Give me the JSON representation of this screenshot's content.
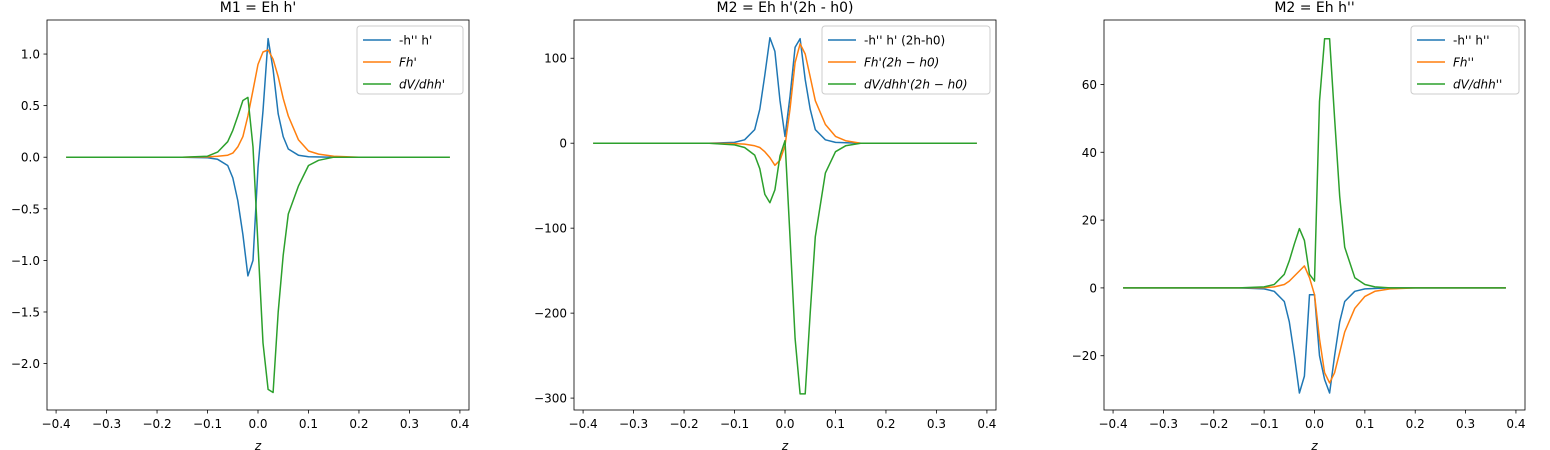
{
  "colors": {
    "blue": "#1f77b4",
    "orange": "#ff7f0e",
    "green": "#2ca02c"
  },
  "chart_data": [
    {
      "type": "line",
      "title": "M1 = Eh h'",
      "xlabel": "z",
      "ylabel": "",
      "xlim": [
        -0.418,
        0.418
      ],
      "ylim": [
        -2.45,
        1.33
      ],
      "xticks": [
        -0.4,
        -0.3,
        -0.2,
        -0.1,
        0.0,
        0.1,
        0.2,
        0.3,
        0.4
      ],
      "xtick_labels": [
        "−0.4",
        "−0.3",
        "−0.2",
        "−0.1",
        "0.0",
        "0.1",
        "0.2",
        "0.3",
        "0.4"
      ],
      "yticks": [
        1.0,
        0.5,
        0.0,
        -0.5,
        -1.0,
        -1.5,
        -2.0
      ],
      "ytick_labels": [
        "1.0",
        "0.5",
        "0.0",
        "−0.5",
        "−1.0",
        "−1.5",
        "−2.0"
      ],
      "grid": false,
      "legend_position": "top-right",
      "series": [
        {
          "name": "-h'' h'",
          "color": "blue",
          "x": [
            -0.38,
            -0.15,
            -0.1,
            -0.08,
            -0.06,
            -0.05,
            -0.04,
            -0.03,
            -0.02,
            -0.01,
            0.0,
            0.01,
            0.02,
            0.03,
            0.04,
            0.05,
            0.06,
            0.08,
            0.1,
            0.15,
            0.38
          ],
          "y": [
            0,
            0,
            -0.005,
            -0.02,
            -0.08,
            -0.2,
            -0.42,
            -0.75,
            -1.15,
            -1.0,
            -0.1,
            0.45,
            1.15,
            0.85,
            0.42,
            0.2,
            0.08,
            0.02,
            0.005,
            0,
            0
          ]
        },
        {
          "name": "Fh'",
          "color": "orange",
          "x": [
            -0.38,
            -0.15,
            -0.1,
            -0.08,
            -0.06,
            -0.05,
            -0.04,
            -0.03,
            -0.02,
            -0.01,
            0.0,
            0.01,
            0.02,
            0.03,
            0.04,
            0.05,
            0.06,
            0.08,
            0.1,
            0.12,
            0.15,
            0.2,
            0.38
          ],
          "y": [
            0,
            0,
            0.003,
            0.01,
            0.02,
            0.04,
            0.1,
            0.2,
            0.4,
            0.65,
            0.9,
            1.02,
            1.04,
            0.95,
            0.78,
            0.57,
            0.4,
            0.17,
            0.06,
            0.03,
            0.01,
            0,
            0
          ]
        },
        {
          "name": "dV/dhh'",
          "color": "green",
          "x": [
            -0.38,
            -0.15,
            -0.1,
            -0.08,
            -0.06,
            -0.05,
            -0.04,
            -0.03,
            -0.02,
            -0.01,
            0.0,
            0.01,
            0.02,
            0.03,
            0.04,
            0.05,
            0.06,
            0.08,
            0.1,
            0.12,
            0.15,
            0.38
          ],
          "y": [
            0,
            0,
            0.01,
            0.05,
            0.15,
            0.26,
            0.4,
            0.55,
            0.58,
            0.1,
            -0.85,
            -1.8,
            -2.25,
            -2.28,
            -1.5,
            -0.95,
            -0.55,
            -0.28,
            -0.08,
            -0.03,
            0,
            0
          ]
        }
      ]
    },
    {
      "type": "line",
      "title": "M2 = Eh h'(2h - h0)",
      "xlabel": "z",
      "ylabel": "",
      "xlim": [
        -0.418,
        0.418
      ],
      "ylim": [
        -314,
        145
      ],
      "xticks": [
        -0.4,
        -0.3,
        -0.2,
        -0.1,
        0.0,
        0.1,
        0.2,
        0.3,
        0.4
      ],
      "xtick_labels": [
        "−0.4",
        "−0.3",
        "−0.2",
        "−0.1",
        "0.0",
        "0.1",
        "0.2",
        "0.3",
        "0.4"
      ],
      "yticks": [
        100,
        0,
        -100,
        -200,
        -300
      ],
      "ytick_labels": [
        "100",
        "0",
        "−100",
        "−200",
        "−300"
      ],
      "grid": false,
      "legend_position": "top-right",
      "series": [
        {
          "name": "-h'' h' (2h-h0)",
          "color": "blue",
          "x": [
            -0.38,
            -0.15,
            -0.1,
            -0.08,
            -0.06,
            -0.05,
            -0.04,
            -0.03,
            -0.02,
            -0.01,
            0.0,
            0.01,
            0.02,
            0.03,
            0.04,
            0.05,
            0.06,
            0.08,
            0.1,
            0.15,
            0.38
          ],
          "y": [
            0,
            0,
            1,
            4,
            16,
            40,
            80,
            124,
            108,
            50,
            8,
            55,
            113,
            123,
            75,
            40,
            16,
            4,
            1,
            0,
            0
          ]
        },
        {
          "name": "Fh'(2h − h0)",
          "color": "orange",
          "x": [
            -0.38,
            -0.15,
            -0.1,
            -0.08,
            -0.06,
            -0.05,
            -0.04,
            -0.03,
            -0.02,
            -0.01,
            0.0,
            0.01,
            0.02,
            0.03,
            0.04,
            0.05,
            0.06,
            0.08,
            0.1,
            0.12,
            0.15,
            0.38
          ],
          "y": [
            0,
            0,
            -0.5,
            -1,
            -3,
            -5,
            -10,
            -17,
            -26,
            -20,
            -3,
            40,
            95,
            117,
            105,
            78,
            50,
            22,
            8,
            3,
            0,
            0
          ]
        },
        {
          "name": "dV/dhh'(2h − h0)",
          "color": "green",
          "x": [
            -0.38,
            -0.15,
            -0.1,
            -0.08,
            -0.06,
            -0.05,
            -0.04,
            -0.03,
            -0.02,
            -0.01,
            0.0,
            0.01,
            0.02,
            0.03,
            0.04,
            0.05,
            0.06,
            0.08,
            0.1,
            0.12,
            0.15,
            0.38
          ],
          "y": [
            0,
            0,
            -2,
            -5,
            -14,
            -30,
            -60,
            -70,
            -55,
            -15,
            3,
            -110,
            -230,
            -295,
            -295,
            -200,
            -110,
            -35,
            -10,
            -3,
            0,
            0
          ]
        }
      ]
    },
    {
      "type": "line",
      "title": "M2 = Eh h''",
      "xlabel": "z",
      "ylabel": "",
      "xlim": [
        -0.418,
        0.418
      ],
      "ylim": [
        -36,
        79
      ],
      "xticks": [
        -0.4,
        -0.3,
        -0.2,
        -0.1,
        0.0,
        0.1,
        0.2,
        0.3,
        0.4
      ],
      "xtick_labels": [
        "−0.4",
        "−0.3",
        "−0.2",
        "−0.1",
        "0.0",
        "0.1",
        "0.2",
        "0.3",
        "0.4"
      ],
      "yticks": [
        60,
        40,
        20,
        0,
        -20
      ],
      "ytick_labels": [
        "60",
        "40",
        "20",
        "0",
        "−20"
      ],
      "grid": false,
      "legend_position": "top-right",
      "series": [
        {
          "name": "-h'' h''",
          "color": "blue",
          "x": [
            -0.38,
            -0.15,
            -0.1,
            -0.08,
            -0.06,
            -0.05,
            -0.04,
            -0.03,
            -0.02,
            -0.01,
            0.0,
            0.01,
            0.02,
            0.03,
            0.04,
            0.05,
            0.06,
            0.08,
            0.1,
            0.15,
            0.38
          ],
          "y": [
            0,
            0,
            -0.3,
            -1,
            -4,
            -10,
            -20,
            -31,
            -26,
            -2,
            -2,
            -20,
            -27,
            -31,
            -20,
            -10,
            -4,
            -1,
            -0.3,
            0,
            0
          ]
        },
        {
          "name": "Fh''",
          "color": "orange",
          "x": [
            -0.38,
            -0.15,
            -0.1,
            -0.08,
            -0.06,
            -0.05,
            -0.04,
            -0.03,
            -0.02,
            -0.01,
            0.0,
            0.01,
            0.02,
            0.03,
            0.04,
            0.05,
            0.06,
            0.08,
            0.1,
            0.12,
            0.15,
            0.2,
            0.38
          ],
          "y": [
            0,
            0,
            0.1,
            0.3,
            1,
            2,
            3.5,
            5,
            6.5,
            3,
            -2,
            -15,
            -25,
            -28,
            -25,
            -19,
            -13,
            -6,
            -2.5,
            -1,
            -0.3,
            0,
            0
          ]
        },
        {
          "name": "dV/dhh''",
          "color": "green",
          "x": [
            -0.38,
            -0.15,
            -0.1,
            -0.08,
            -0.06,
            -0.05,
            -0.04,
            -0.03,
            -0.02,
            -0.01,
            0.0,
            0.01,
            0.02,
            0.03,
            0.04,
            0.05,
            0.06,
            0.08,
            0.1,
            0.12,
            0.15,
            0.38
          ],
          "y": [
            0,
            0,
            0.3,
            1,
            4,
            8,
            13,
            17.5,
            14,
            4,
            2,
            55,
            73.5,
            73.5,
            50,
            27,
            12,
            3,
            1,
            0.3,
            0,
            0
          ]
        }
      ]
    }
  ]
}
